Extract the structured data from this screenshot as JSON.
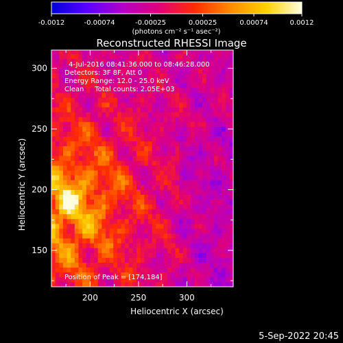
{
  "chart_data": {
    "type": "heatmap",
    "title": "Reconstructed RHESSI Image",
    "xlabel": "Heliocentric X (arcsec)",
    "ylabel": "Heliocentric Y (arcsec)",
    "xlim": [
      160,
      348
    ],
    "ylim": [
      120,
      315
    ],
    "xticks": [
      200,
      250,
      300
    ],
    "yticks": [
      150,
      200,
      250,
      300
    ],
    "colorbar": {
      "range": [
        -0.0012,
        0.0012
      ],
      "ticks": [
        "-0.0012",
        "-0.00074",
        "-0.00025",
        "0.00025",
        "0.00074",
        "0.0012"
      ],
      "unit": "(photons cm⁻² s⁻¹ asec⁻²)",
      "colors": [
        "#0000d8",
        "#5a00ff",
        "#b400c8",
        "#e0007a",
        "#ff2d00",
        "#ff8a00",
        "#ffd000",
        "#ffffe0"
      ]
    },
    "annotations": [
      "4-Jul-2016 08:41:36.000 to 08:46:28.000",
      "Detectors: 3F 8F, Att 0",
      "Energy Range: 12.0 - 25.0 keV",
      "Clean     Total counts: 2.05E+03"
    ],
    "peak_label": "Position of Peak = [174,184]",
    "peak": [
      174,
      184
    ],
    "pixel_size_arcsec": 4
  },
  "footer": {
    "timestamp": "5-Sep-2022 20:45"
  }
}
